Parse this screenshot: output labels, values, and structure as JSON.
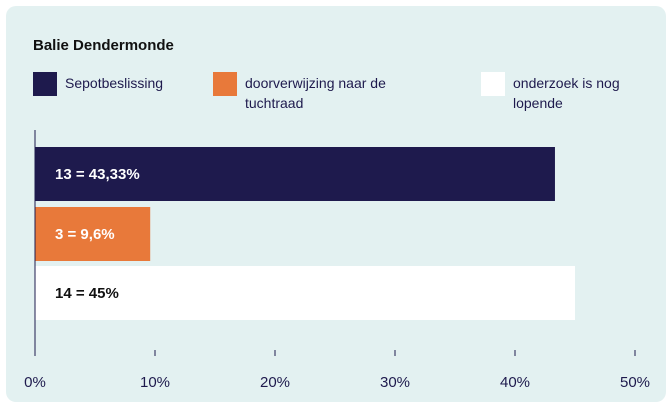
{
  "chart_data": {
    "type": "bar",
    "orientation": "horizontal",
    "title": "Balie Dendermonde",
    "series": [
      {
        "name": "Sepotbeslissing",
        "color": "#1e1a4d",
        "values": [
          43.33
        ],
        "value_labels": [
          "13 = 43,33%"
        ]
      },
      {
        "name": "doorverwijzing naar de tuchtraad",
        "color": "#e8793a",
        "values": [
          9.6
        ],
        "value_labels": [
          "3 = 9,6%"
        ]
      },
      {
        "name": "onderzoek is nog lopende",
        "color": "#ffffff",
        "values": [
          45
        ],
        "value_labels": [
          "14 = 45%"
        ]
      }
    ],
    "xlim": [
      0,
      50
    ],
    "xticks": [
      {
        "value": 0,
        "label": "0%"
      },
      {
        "value": 10,
        "label": "10%"
      },
      {
        "value": 20,
        "label": "20%"
      },
      {
        "value": 30,
        "label": "30%"
      },
      {
        "value": 40,
        "label": "40%"
      },
      {
        "value": 50,
        "label": "50%"
      }
    ],
    "legend": "top"
  }
}
